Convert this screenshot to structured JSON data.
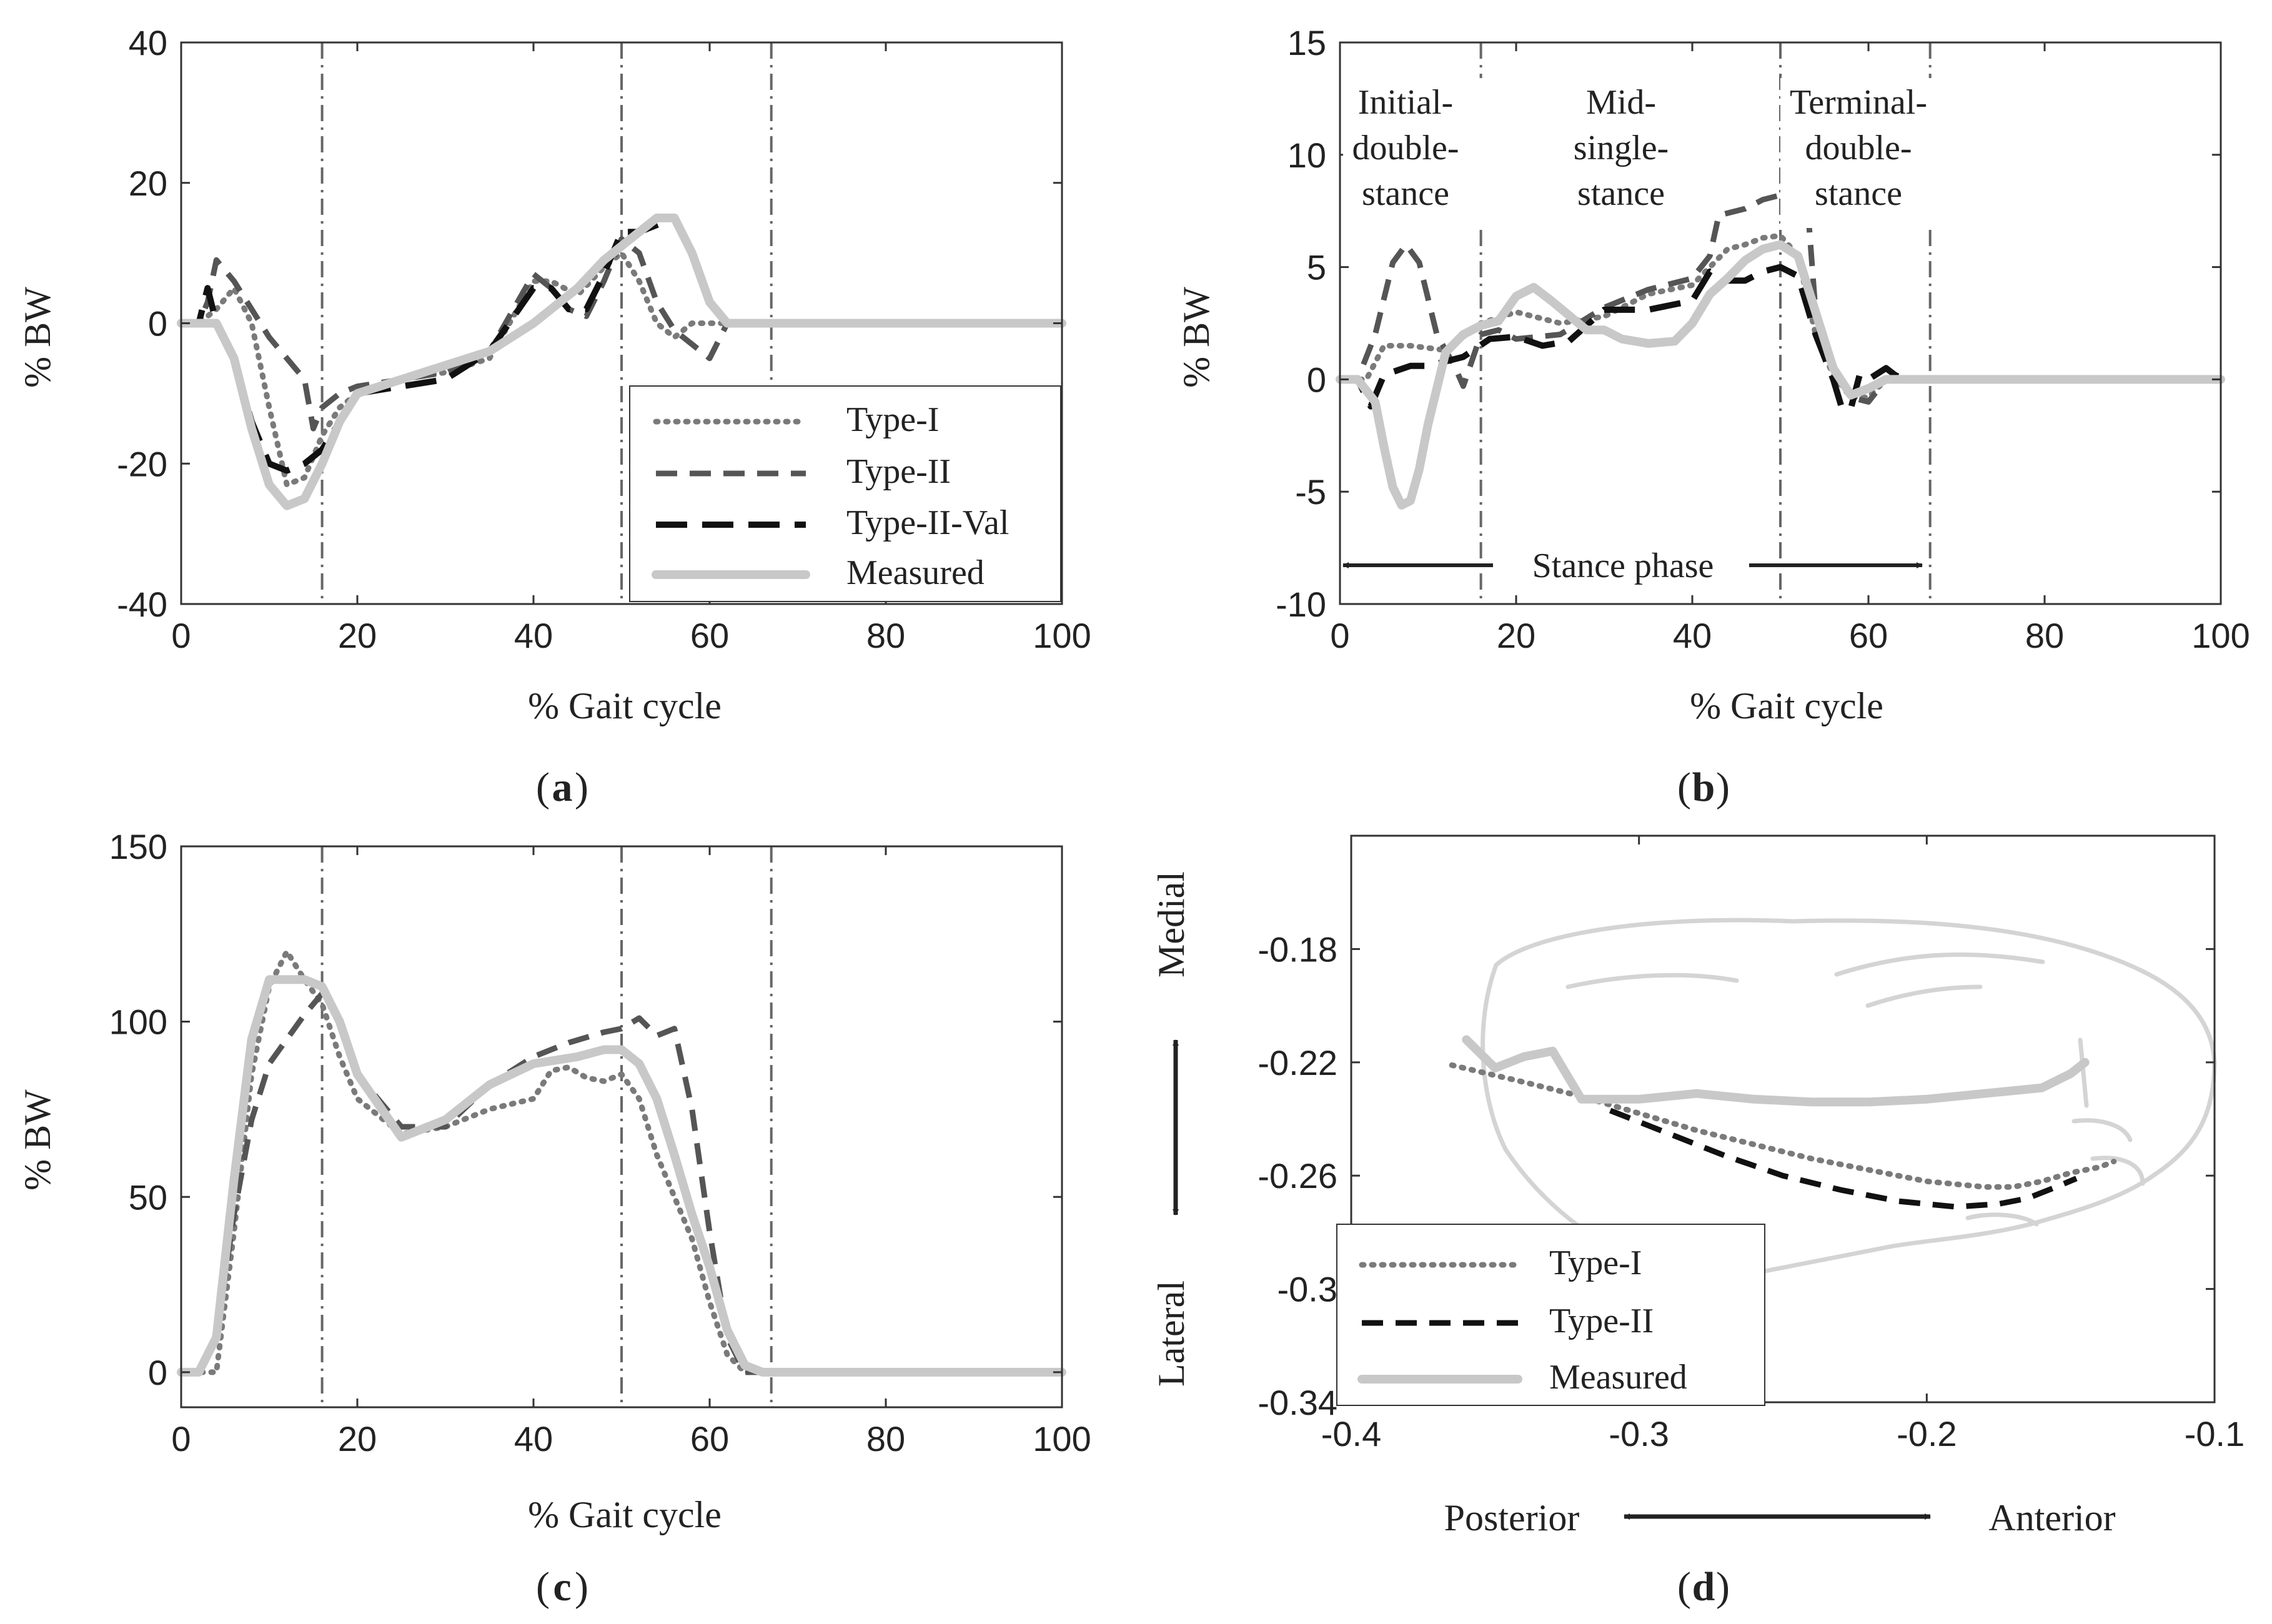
{
  "chart_data": [
    {
      "id": "a",
      "type": "line",
      "caption": "a",
      "xlabel": "% Gait cycle",
      "ylabel": "% BW",
      "xlim": [
        0,
        100
      ],
      "ylim": [
        -40,
        40
      ],
      "xticks": [
        "0",
        "20",
        "40",
        "60",
        "80",
        "100"
      ],
      "yticks": [
        "-40",
        "-20",
        "0",
        "20",
        "40"
      ],
      "vlines": [
        16,
        50,
        67
      ],
      "legend": [
        "Type-I",
        "Type-II",
        "Type-II-Val",
        "Measured"
      ],
      "legend_position": "bottom-right",
      "series": [
        {
          "name": "Type-I",
          "style": "dotted",
          "color": "#7a7a7a",
          "x": [
            0,
            2,
            4,
            6,
            8,
            10,
            12,
            14,
            16,
            18,
            20,
            25,
            30,
            35,
            40,
            42,
            45,
            48,
            50,
            52,
            54,
            56,
            58,
            60,
            62,
            63,
            65,
            100
          ],
          "y": [
            0,
            0,
            2,
            5,
            0,
            -12,
            -23,
            -22,
            -16,
            -12,
            -10,
            -8,
            -7,
            -5,
            6,
            6,
            4,
            8,
            10,
            6,
            0,
            -2,
            0,
            0,
            0,
            0,
            0,
            0
          ]
        },
        {
          "name": "Type-II",
          "style": "dashed",
          "color": "#555555",
          "x": [
            0,
            2,
            3,
            4,
            6,
            8,
            10,
            12,
            14,
            15,
            16,
            18,
            20,
            25,
            30,
            35,
            40,
            42,
            44,
            46,
            48,
            50,
            52,
            54,
            56,
            58,
            60,
            62,
            63,
            65,
            100
          ],
          "y": [
            0,
            0,
            3,
            9,
            6,
            2,
            -2,
            -5,
            -8,
            -15,
            -12,
            -10,
            -9,
            -8,
            -7,
            -4,
            7,
            5,
            2,
            1,
            6,
            12,
            10,
            3,
            -1,
            -3,
            -5,
            0,
            0,
            0,
            0
          ]
        },
        {
          "name": "Type-II-Val",
          "style": "longdash",
          "color": "#111111",
          "x": [
            0,
            2,
            3,
            4,
            6,
            8,
            10,
            12,
            14,
            16,
            18,
            20,
            25,
            30,
            35,
            40,
            42,
            44,
            46,
            48,
            50,
            52,
            54,
            56,
            58,
            60,
            62,
            63,
            65,
            100
          ],
          "y": [
            0,
            0,
            5,
            0,
            -5,
            -14,
            -20,
            -21,
            -20,
            -18,
            -14,
            -10,
            -9,
            -8,
            -4,
            5,
            5,
            2,
            2,
            7,
            13,
            13,
            14,
            15,
            10,
            3,
            0,
            0,
            0,
            0
          ]
        },
        {
          "name": "Measured",
          "style": "solid",
          "color": "#c8c8c8",
          "x": [
            0,
            2,
            4,
            6,
            8,
            10,
            12,
            14,
            16,
            18,
            20,
            25,
            30,
            35,
            40,
            45,
            48,
            50,
            52,
            54,
            56,
            58,
            60,
            62,
            63,
            65,
            100
          ],
          "y": [
            0,
            0,
            0,
            -5,
            -15,
            -23,
            -26,
            -25,
            -20,
            -14,
            -10,
            -8,
            -6,
            -4,
            0,
            5,
            9,
            11,
            13,
            15,
            15,
            10,
            3,
            0,
            0,
            0,
            0
          ]
        }
      ]
    },
    {
      "id": "b",
      "type": "line",
      "caption": "b",
      "xlabel": "% Gait cycle",
      "ylabel": "% BW",
      "xlim": [
        0,
        100
      ],
      "ylim": [
        -10,
        15
      ],
      "xticks": [
        "0",
        "20",
        "40",
        "60",
        "80",
        "100"
      ],
      "yticks": [
        "-10",
        "-5",
        "0",
        "5",
        "10",
        "15"
      ],
      "vlines": [
        16,
        50,
        67
      ],
      "phase_labels": [
        {
          "lines": [
            "Initial-",
            "double-",
            "stance"
          ],
          "x": 7.5
        },
        {
          "lines": [
            "Mid-",
            "single-",
            "stance"
          ],
          "x": 31.5
        },
        {
          "lines": [
            "Terminal-",
            "double-",
            "stance"
          ],
          "x": 58.5
        }
      ],
      "stance_label": "Stance phase",
      "stance_range": [
        0,
        67
      ],
      "series": [
        {
          "name": "Type-I",
          "style": "dotted",
          "color": "#7a7a7a",
          "x": [
            0,
            3,
            5,
            8,
            12,
            16,
            20,
            25,
            30,
            35,
            40,
            44,
            46,
            48,
            50,
            52,
            54,
            56,
            58,
            60,
            62,
            64,
            65,
            100
          ],
          "y": [
            0,
            0,
            1.5,
            1.5,
            1.3,
            2.5,
            3,
            2.5,
            2.8,
            3.8,
            4.2,
            5.8,
            6,
            6.3,
            6.4,
            5.5,
            2,
            0.2,
            -0.8,
            -0.8,
            0,
            0,
            0,
            0
          ]
        },
        {
          "name": "Type-II",
          "style": "dashed",
          "color": "#555555",
          "x": [
            0,
            2,
            4,
            6,
            7.5,
            9,
            11,
            13,
            14,
            16,
            18,
            20,
            25,
            30,
            35,
            40,
            42,
            43,
            46,
            48,
            50,
            52,
            53,
            54,
            56,
            58,
            60,
            62,
            64,
            65,
            100
          ],
          "y": [
            0,
            0,
            2,
            5.2,
            6,
            5.2,
            2,
            0.6,
            -0.3,
            2,
            2.2,
            1.8,
            2,
            3.2,
            4,
            4.5,
            5.5,
            7.3,
            7.6,
            8,
            8.2,
            8.2,
            8.2,
            3,
            0.5,
            -0.8,
            -1,
            0,
            0,
            0,
            0
          ]
        },
        {
          "name": "Type-II-Val",
          "style": "longdash",
          "color": "#111111",
          "x": [
            0,
            2,
            3.5,
            5,
            8,
            10,
            14,
            17,
            20,
            23,
            26,
            30,
            35,
            40,
            42,
            44,
            46,
            48,
            50,
            52,
            54,
            56,
            57,
            58,
            59,
            60,
            62,
            63,
            64,
            65,
            100
          ],
          "y": [
            0,
            0,
            -1.2,
            0.2,
            0.6,
            0.6,
            1,
            1.8,
            1.9,
            1.5,
            1.7,
            3.1,
            3.1,
            3.5,
            4.8,
            4.4,
            4.4,
            4.8,
            5,
            4.6,
            2,
            0,
            -1.3,
            -1.3,
            0.2,
            0,
            0.5,
            0.2,
            0,
            0,
            0
          ]
        },
        {
          "name": "Measured",
          "style": "solid",
          "color": "#c8c8c8",
          "x": [
            0,
            2,
            4,
            5,
            6,
            7,
            8,
            9,
            10,
            11,
            12,
            14,
            16,
            18,
            20,
            22,
            24,
            28,
            30,
            32,
            35,
            38,
            40,
            42,
            44,
            46,
            48,
            50,
            52,
            54,
            56,
            58,
            60,
            62,
            64,
            65,
            100
          ],
          "y": [
            0,
            0,
            -1,
            -3,
            -4.8,
            -5.6,
            -5.4,
            -4,
            -2,
            -0.4,
            1.2,
            2,
            2.4,
            2.6,
            3.7,
            4.1,
            3.5,
            2.2,
            2.2,
            1.8,
            1.6,
            1.7,
            2.5,
            3.8,
            4.5,
            5.3,
            5.8,
            6,
            5.5,
            3,
            0.5,
            -0.7,
            -0.4,
            0,
            0,
            0,
            0
          ]
        }
      ]
    },
    {
      "id": "c",
      "type": "line",
      "caption": "c",
      "xlabel": "% Gait cycle",
      "ylabel": "% BW",
      "xlim": [
        0,
        100
      ],
      "ylim": [
        -10,
        150
      ],
      "xticks": [
        "0",
        "20",
        "40",
        "60",
        "80",
        "100"
      ],
      "yticks": [
        "0",
        "50",
        "100",
        "150"
      ],
      "vlines": [
        16,
        50,
        67
      ],
      "series": [
        {
          "name": "Type-I",
          "style": "dotted",
          "color": "#7a7a7a",
          "x": [
            0,
            2,
            4,
            6,
            8,
            10,
            12,
            14,
            16,
            18,
            20,
            25,
            30,
            35,
            40,
            42,
            44,
            46,
            48,
            50,
            52,
            54,
            56,
            58,
            60,
            62,
            64,
            66,
            100
          ],
          "y": [
            0,
            0,
            0,
            40,
            85,
            110,
            120,
            112,
            105,
            90,
            78,
            68,
            70,
            75,
            78,
            86,
            87,
            84,
            83,
            85,
            78,
            62,
            50,
            38,
            20,
            5,
            0,
            0,
            0
          ]
        },
        {
          "name": "Type-II",
          "style": "dashed",
          "color": "#555555",
          "x": [
            0,
            2,
            4,
            6,
            8,
            10,
            12,
            14,
            16,
            18,
            20,
            25,
            30,
            35,
            40,
            44,
            48,
            50,
            52,
            54,
            56,
            58,
            60,
            62,
            64,
            66,
            100
          ],
          "y": [
            0,
            0,
            10,
            45,
            72,
            88,
            95,
            102,
            108,
            100,
            85,
            70,
            70,
            82,
            90,
            94,
            97,
            98,
            101,
            96,
            98,
            75,
            40,
            10,
            0,
            0,
            0
          ]
        },
        {
          "name": "Measured",
          "style": "solid",
          "color": "#c8c8c8",
          "x": [
            0,
            2,
            4,
            6,
            8,
            10,
            12,
            14,
            16,
            18,
            20,
            25,
            30,
            35,
            40,
            45,
            48,
            50,
            52,
            54,
            56,
            58,
            60,
            62,
            64,
            66,
            100
          ],
          "y": [
            0,
            0,
            10,
            55,
            95,
            112,
            112,
            112,
            110,
            100,
            85,
            67,
            72,
            82,
            88,
            90,
            92,
            92,
            88,
            78,
            62,
            45,
            30,
            12,
            2,
            0,
            0
          ]
        }
      ]
    },
    {
      "id": "d",
      "type": "line",
      "caption": "d",
      "xlabel": "",
      "ylabel": "",
      "xlim": [
        -0.4,
        -0.1
      ],
      "ylim": [
        -0.34,
        -0.14
      ],
      "xticks": [
        "-0.4",
        "-0.3",
        "-0.2",
        "-0.1"
      ],
      "yticks": [
        "-0.18",
        "-0.22",
        "-0.26",
        "-0.3",
        "-0.34"
      ],
      "medial_label": "Medial",
      "lateral_label": "Lateral",
      "posterior_label": "Posterior",
      "anterior_label": "Anterior",
      "legend": [
        "Type-I",
        "Type-II",
        "Measured"
      ],
      "legend_position": "bottom-left",
      "series": [
        {
          "name": "Type-I",
          "style": "dotted",
          "color": "#7a7a7a",
          "x": [
            -0.365,
            -0.34,
            -0.32,
            -0.3,
            -0.28,
            -0.26,
            -0.24,
            -0.22,
            -0.2,
            -0.18,
            -0.17,
            -0.16,
            -0.15,
            -0.14,
            -0.135
          ],
          "y": [
            -0.221,
            -0.227,
            -0.232,
            -0.238,
            -0.244,
            -0.249,
            -0.254,
            -0.258,
            -0.262,
            -0.264,
            -0.264,
            -0.262,
            -0.259,
            -0.257,
            -0.255
          ]
        },
        {
          "name": "Type-II",
          "style": "dashed",
          "color": "#111111",
          "x": [
            -0.31,
            -0.29,
            -0.27,
            -0.25,
            -0.23,
            -0.21,
            -0.19,
            -0.175,
            -0.165,
            -0.155,
            -0.148
          ],
          "y": [
            -0.237,
            -0.245,
            -0.253,
            -0.26,
            -0.265,
            -0.269,
            -0.271,
            -0.27,
            -0.268,
            -0.264,
            -0.261
          ]
        },
        {
          "name": "Measured",
          "style": "solid",
          "color": "#c8c8c8",
          "x": [
            -0.36,
            -0.35,
            -0.34,
            -0.33,
            -0.32,
            -0.3,
            -0.28,
            -0.26,
            -0.24,
            -0.22,
            -0.2,
            -0.18,
            -0.16,
            -0.15,
            -0.145
          ],
          "y": [
            -0.212,
            -0.222,
            -0.218,
            -0.216,
            -0.233,
            -0.233,
            -0.231,
            -0.233,
            -0.234,
            -0.234,
            -0.233,
            -0.231,
            -0.229,
            -0.224,
            -0.22
          ]
        }
      ]
    }
  ]
}
